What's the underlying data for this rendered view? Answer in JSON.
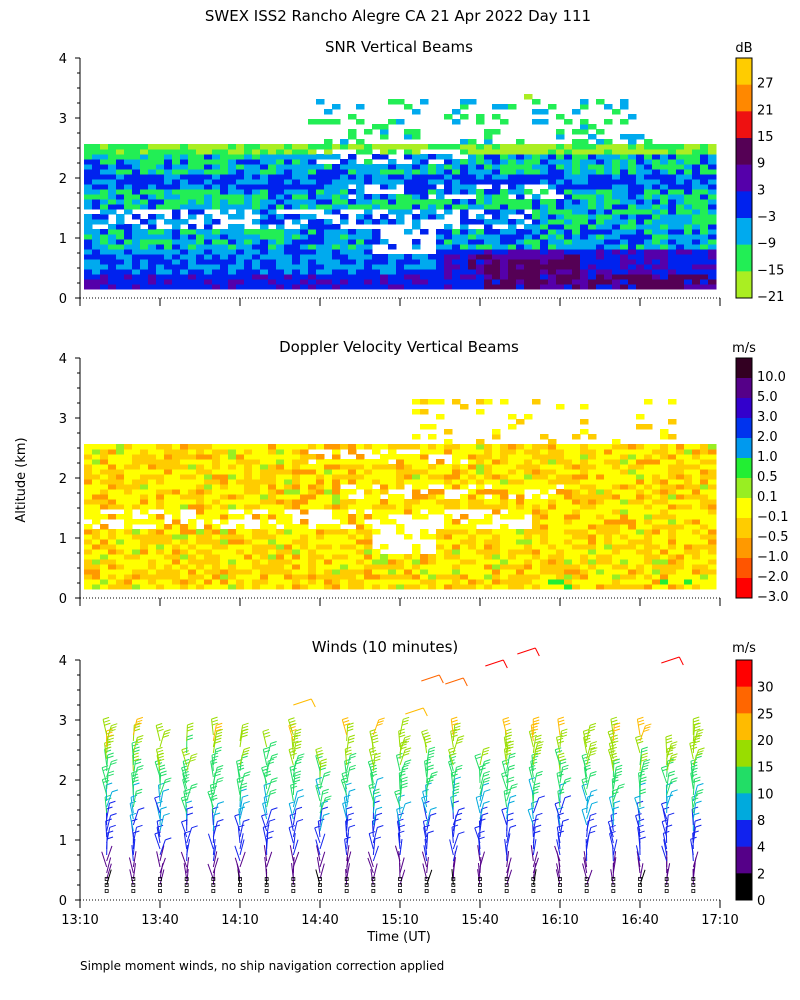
{
  "title": "SWEX ISS2 Rancho Alegre CA  21 Apr 2022 Day 111",
  "ylabel": "Altitude (km)",
  "xlabel": "Time (UT)",
  "footnote": "Simple moment winds, no ship navigation correction applied",
  "chart_data": [
    {
      "type": "heatmap",
      "title": "SNR Vertical Beams",
      "x_ticks": [
        "13:10",
        "13:40",
        "14:10",
        "14:40",
        "15:10",
        "15:40",
        "16:10",
        "16:40",
        "17:10"
      ],
      "x_range_hours": [
        13.1667,
        17.1667
      ],
      "y_ticks": [
        "0",
        "1",
        "2",
        "3",
        "4"
      ],
      "ylim": [
        0,
        4
      ],
      "colorbar": {
        "unit": "dB",
        "labels": [
          "27",
          "21",
          "15",
          "9",
          "3",
          "−3",
          "−9",
          "−15",
          "−21"
        ],
        "colors": [
          "#ffcc00",
          "#ff8800",
          "#ee1111",
          "#550055",
          "#5500aa",
          "#0022ee",
          "#00aaee",
          "#22ee55",
          "#aaee22"
        ]
      },
      "layers": [
        {
          "alt_from": 0.15,
          "alt_to": 0.55,
          "level": "−3",
          "note": "blue band near surface, purple patches 15:35-17:05"
        },
        {
          "alt_from": 0.55,
          "alt_to": 1.4,
          "level": "−9",
          "note": "cyan/blue layer"
        },
        {
          "alt_from": 1.4,
          "alt_to": 2.5,
          "level": "−15",
          "note": "green with blue stripes around 1.9-2.0 km"
        },
        {
          "alt_from": 2.5,
          "alt_to": 3.3,
          "level": "−21",
          "note": "scattered green patches"
        }
      ]
    },
    {
      "type": "heatmap",
      "title": "Doppler Velocity Vertical Beams",
      "x_ticks": [
        "13:10",
        "13:40",
        "14:10",
        "14:40",
        "15:10",
        "15:40",
        "16:10",
        "16:40",
        "17:10"
      ],
      "x_range_hours": [
        13.1667,
        17.1667
      ],
      "y_ticks": [
        "0",
        "1",
        "2",
        "3",
        "4"
      ],
      "ylim": [
        0,
        4
      ],
      "colorbar": {
        "unit": "m/s",
        "labels": [
          "10.0",
          "5.0",
          "3.0",
          "2.0",
          "1.0",
          "0.5",
          "0.1",
          "−0.1",
          "−0.5",
          "−1.0",
          "−2.0",
          "−3.0"
        ],
        "colors": [
          "#330022",
          "#550088",
          "#3300cc",
          "#0033ee",
          "#0099ee",
          "#22ee33",
          "#99ee22",
          "#ffff00",
          "#ffcc00",
          "#ff9900",
          "#ff5500",
          "#ff0000"
        ]
      },
      "layers": [
        {
          "alt_from": 0.15,
          "alt_to": 1.3,
          "level": "−0.5",
          "note": "yellow/orange, weak downward motion"
        },
        {
          "alt_from": 1.3,
          "alt_to": 2.5,
          "level": "−0.1",
          "note": "yellow/orange with white gaps"
        },
        {
          "alt_from": 2.5,
          "alt_to": 3.3,
          "level": "−0.1",
          "note": "scattered patches"
        }
      ]
    },
    {
      "type": "wind_barbs",
      "title": "Winds (10 minutes)",
      "x_ticks": [
        "13:10",
        "13:40",
        "14:10",
        "14:40",
        "15:10",
        "15:40",
        "16:10",
        "16:40",
        "17:10"
      ],
      "x_range_hours": [
        13.1667,
        17.1667
      ],
      "y_ticks": [
        "0",
        "1",
        "2",
        "3",
        "4"
      ],
      "ylim": [
        0,
        4
      ],
      "interval_minutes": 10,
      "colorbar": {
        "unit": "m/s",
        "labels": [
          "30",
          "25",
          "20",
          "15",
          "10",
          "8",
          "4",
          "2",
          "0"
        ],
        "colors": [
          "#ff0000",
          "#ff6600",
          "#ffbb00",
          "#99dd00",
          "#22dd66",
          "#00aadd",
          "#1122ee",
          "#550088",
          "#000000"
        ]
      },
      "profile_speed_ms": [
        {
          "alt": 0.2,
          "speed": 2
        },
        {
          "alt": 0.5,
          "speed": 3
        },
        {
          "alt": 0.8,
          "speed": 5
        },
        {
          "alt": 1.2,
          "speed": 8
        },
        {
          "alt": 1.6,
          "speed": 10
        },
        {
          "alt": 2.0,
          "speed": 13
        },
        {
          "alt": 2.4,
          "speed": 17
        },
        {
          "alt": 2.8,
          "speed": 20
        },
        {
          "alt": 3.2,
          "speed": 22
        },
        {
          "alt": 3.8,
          "speed": 30
        }
      ]
    }
  ]
}
